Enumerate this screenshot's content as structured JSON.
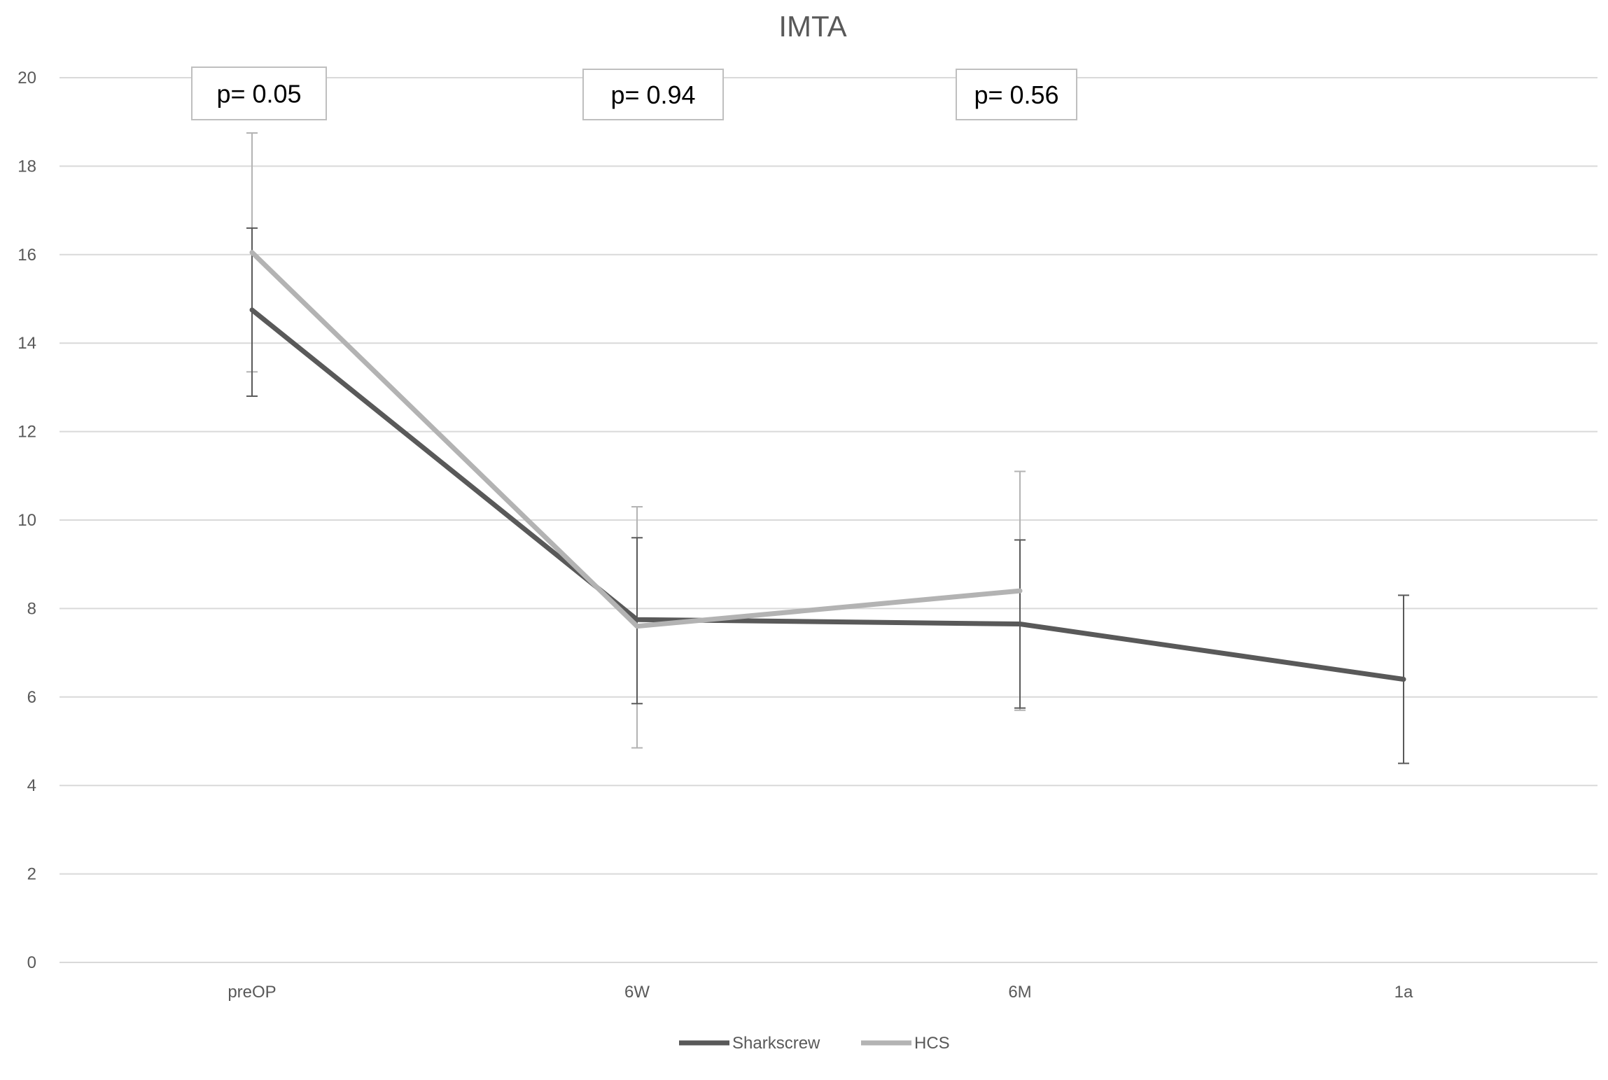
{
  "chart_data": {
    "type": "line",
    "title": "IMTA",
    "xlabel": "",
    "ylabel": "",
    "categories": [
      "preOP",
      "6W",
      "6M",
      "1a"
    ],
    "ylim": [
      0,
      20
    ],
    "yticks": [
      0,
      2,
      4,
      6,
      8,
      10,
      12,
      14,
      16,
      18,
      20
    ],
    "grid": true,
    "legend_position": "bottom-center",
    "series": [
      {
        "name": "Sharkscrew",
        "color": "#595959",
        "values": [
          14.75,
          7.75,
          7.65,
          6.4
        ],
        "error_low": [
          12.8,
          5.85,
          5.75,
          4.5
        ],
        "error_high": [
          16.6,
          9.6,
          9.55,
          8.3
        ]
      },
      {
        "name": "HCS",
        "color": "#b3b3b3",
        "values": [
          16.05,
          7.6,
          8.4,
          null
        ],
        "error_low": [
          13.35,
          4.85,
          5.7,
          null
        ],
        "error_high": [
          18.75,
          10.3,
          11.1,
          null
        ]
      }
    ],
    "annotations": [
      "p= 0.05",
      "p= 0.94",
      "p= 0.56"
    ]
  }
}
